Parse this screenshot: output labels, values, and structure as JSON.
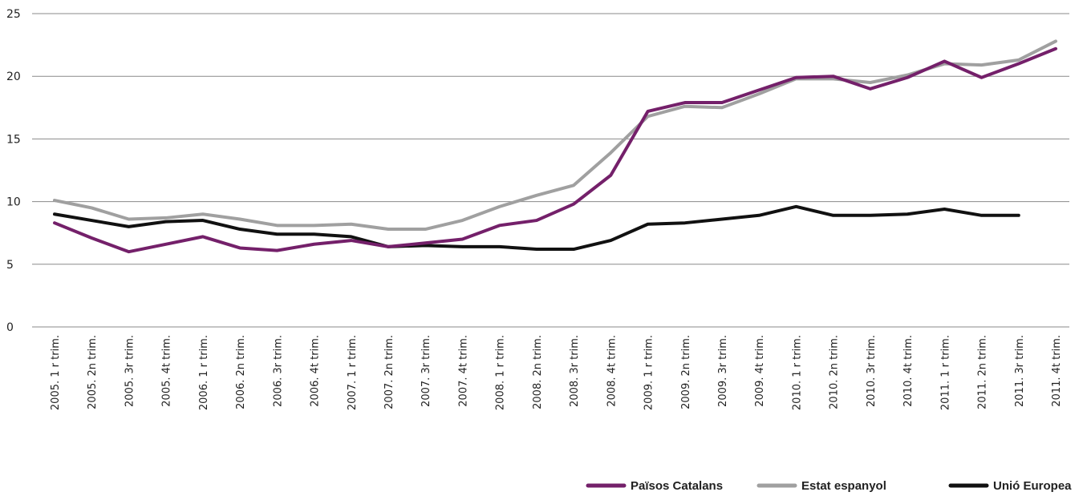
{
  "chart_data": {
    "type": "line",
    "title": "",
    "xlabel": "",
    "ylabel": "",
    "ylim": [
      0,
      25
    ],
    "yticks": [
      0,
      5,
      10,
      15,
      20,
      25
    ],
    "grid": true,
    "legend_position": "bottom-right",
    "categories": [
      "2005. 1 r trim.",
      "2005. 2n trim.",
      "2005. 3r trim.",
      "2005. 4t trim.",
      "2006. 1 r trim.",
      "2006. 2n trim.",
      "2006. 3r trim.",
      "2006. 4t trim.",
      "2007. 1 r trim.",
      "2007. 2n trim.",
      "2007. 3r trim.",
      "2007. 4t trim.",
      "2008. 1 r trim.",
      "2008. 2n trim.",
      "2008. 3r trim.",
      "2008. 4t trim.",
      "2009. 1 r trim.",
      "2009. 2n trim.",
      "2009. 3r trim.",
      "2009. 4t trim.",
      "2010. 1 r trim.",
      "2010. 2n trim.",
      "2010. 3r trim.",
      "2010. 4t trim.",
      "2011. 1 r trim.",
      "2011. 2n trim.",
      "2011. 3r trim.",
      "2011. 4t trim."
    ],
    "series": [
      {
        "name": "Estat espanyol",
        "color": "#a0a0a0",
        "values": [
          10.1,
          9.5,
          8.6,
          8.7,
          9.0,
          8.6,
          8.1,
          8.1,
          8.2,
          7.8,
          7.8,
          8.5,
          9.6,
          10.5,
          11.3,
          13.9,
          16.8,
          17.6,
          17.5,
          18.6,
          19.8,
          19.8,
          19.5,
          20.1,
          21.0,
          20.9,
          21.3,
          22.8
        ]
      },
      {
        "name": "Unió Europea",
        "color": "#111111",
        "values": [
          9.0,
          8.5,
          8.0,
          8.4,
          8.5,
          7.8,
          7.4,
          7.4,
          7.2,
          6.4,
          6.5,
          6.4,
          6.4,
          6.2,
          6.2,
          6.9,
          8.2,
          8.3,
          8.6,
          8.9,
          9.6,
          8.9,
          8.9,
          9.0,
          9.4,
          8.9,
          8.9,
          null
        ]
      },
      {
        "name": "Països Catalans",
        "color": "#74206a",
        "values": [
          8.3,
          7.1,
          6.0,
          6.6,
          7.2,
          6.3,
          6.1,
          6.6,
          6.9,
          6.4,
          6.7,
          7.0,
          8.1,
          8.5,
          9.8,
          12.1,
          17.2,
          17.9,
          17.9,
          18.9,
          19.9,
          20.0,
          19.0,
          19.9,
          21.2,
          19.9,
          21.0,
          22.2
        ]
      }
    ],
    "legend_order": [
      "Països Catalans",
      "Estat espanyol",
      "Unió Europea"
    ]
  }
}
